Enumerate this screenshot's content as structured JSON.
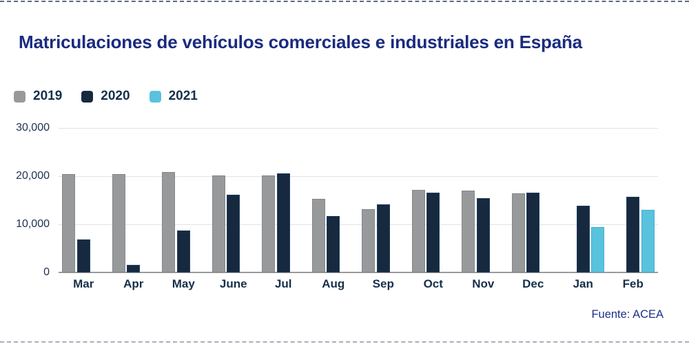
{
  "page": {
    "title": "Matriculaciones de vehículos comerciales e industriales en España",
    "source": "Fuente: ACEA"
  },
  "colors": {
    "title_text": "#1a2b7f",
    "axis_text": "#16304a",
    "source_text": "#1c3087",
    "gridline": "#e2e2e2",
    "axis_line": "#9a9a9a",
    "series_2019": "#97999b",
    "series_2020": "#16293f",
    "series_2021": "#59c2dd"
  },
  "chart_data": {
    "type": "bar",
    "title": "Matriculaciones de vehículos comerciales e industriales en España",
    "categories": [
      "Mar",
      "Apr",
      "May",
      "June",
      "Jul",
      "Aug",
      "Sep",
      "Oct",
      "Nov",
      "Dec",
      "Jan",
      "Feb"
    ],
    "series": [
      {
        "name": "2019",
        "color": "#97999b",
        "border": "#84888b",
        "values": [
          20400,
          20400,
          20900,
          20200,
          20100,
          15300,
          13200,
          17200,
          17000,
          16400,
          null,
          null
        ]
      },
      {
        "name": "2020",
        "color": "#16293f",
        "border": "#24405f",
        "values": [
          6800,
          1600,
          8700,
          16200,
          20600,
          11700,
          14100,
          16600,
          15500,
          16600,
          13900,
          15700
        ]
      },
      {
        "name": "2021",
        "color": "#59c2dd",
        "border": "#43b0cf",
        "values": [
          null,
          null,
          null,
          null,
          null,
          null,
          null,
          null,
          null,
          null,
          9500,
          13000
        ]
      }
    ],
    "ylim": [
      0,
      30000
    ],
    "yticks": [
      0,
      10000,
      20000,
      30000
    ],
    "ytick_labels": [
      "0",
      "10,000",
      "20,000",
      "30,000"
    ],
    "grid": true,
    "legend_position": "top-left",
    "xlabel": "",
    "ylabel": "",
    "source": "Fuente: ACEA"
  }
}
